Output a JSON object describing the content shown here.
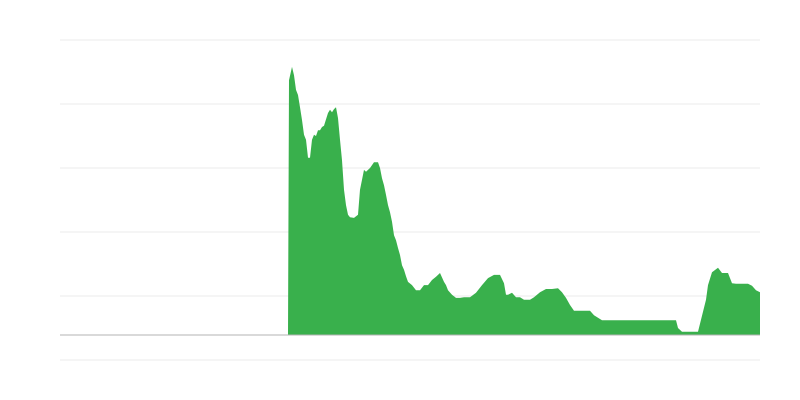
{
  "chart_data": {
    "type": "area",
    "title": "",
    "xlabel": "",
    "ylabel": "",
    "xlim": [
      0,
      700
    ],
    "ylim": [
      -0.39,
      4.61
    ],
    "gridlines_y": [
      -0.39,
      0.61,
      1.61,
      2.61,
      3.61,
      4.61
    ],
    "grid": true,
    "legend": "none",
    "colors": {
      "fill": "#39b04c",
      "grid": "#ebebeb",
      "baseline": "#b3b3b3"
    },
    "series": [
      {
        "x": [
          0,
          228,
          229,
          232,
          234,
          236,
          238,
          240,
          242,
          244,
          246,
          248,
          250,
          252,
          254,
          256,
          258,
          260,
          262,
          264,
          268,
          270,
          272,
          274,
          276,
          278,
          280,
          282,
          284,
          286,
          288,
          290,
          294,
          298,
          300,
          304,
          306,
          308,
          310,
          314,
          318,
          320,
          322,
          324,
          326,
          328,
          330,
          332,
          334,
          336,
          338,
          340,
          342,
          344,
          346,
          348,
          352,
          356,
          360,
          364,
          368,
          372,
          376,
          380,
          384,
          386,
          388,
          392,
          396,
          400,
          404,
          410,
          416,
          422,
          428,
          434,
          440,
          444,
          446,
          448,
          452,
          456,
          460,
          464,
          470,
          474,
          480,
          486,
          492,
          498,
          502,
          506,
          510,
          514,
          520,
          530,
          534,
          538,
          542,
          616,
          618,
          622,
          638,
          642,
          646,
          648,
          652,
          658,
          662,
          668,
          672,
          676,
          688,
          692,
          696,
          700
        ],
        "values": [
          0,
          0,
          3.98,
          4.19,
          4.06,
          3.83,
          3.75,
          3.56,
          3.36,
          3.13,
          3.05,
          2.77,
          2.77,
          3.05,
          3.13,
          3.11,
          3.2,
          3.2,
          3.25,
          3.27,
          3.47,
          3.52,
          3.48,
          3.53,
          3.56,
          3.39,
          3.05,
          2.73,
          2.27,
          2.03,
          1.88,
          1.84,
          1.83,
          1.88,
          2.27,
          2.58,
          2.55,
          2.58,
          2.61,
          2.7,
          2.7,
          2.61,
          2.45,
          2.34,
          2.19,
          2.03,
          1.92,
          1.77,
          1.56,
          1.48,
          1.36,
          1.25,
          1.09,
          1.02,
          0.92,
          0.83,
          0.78,
          0.7,
          0.7,
          0.78,
          0.78,
          0.86,
          0.91,
          0.97,
          0.83,
          0.78,
          0.7,
          0.63,
          0.58,
          0.58,
          0.59,
          0.59,
          0.66,
          0.78,
          0.89,
          0.94,
          0.94,
          0.81,
          0.63,
          0.63,
          0.66,
          0.59,
          0.59,
          0.55,
          0.55,
          0.59,
          0.67,
          0.72,
          0.72,
          0.73,
          0.67,
          0.58,
          0.47,
          0.38,
          0.38,
          0.38,
          0.31,
          0.27,
          0.23,
          0.23,
          0.11,
          0.05,
          0.05,
          0.3,
          0.55,
          0.78,
          0.98,
          1.05,
          0.97,
          0.97,
          0.81,
          0.8,
          0.8,
          0.77,
          0.7,
          0.67
        ]
      }
    ]
  }
}
